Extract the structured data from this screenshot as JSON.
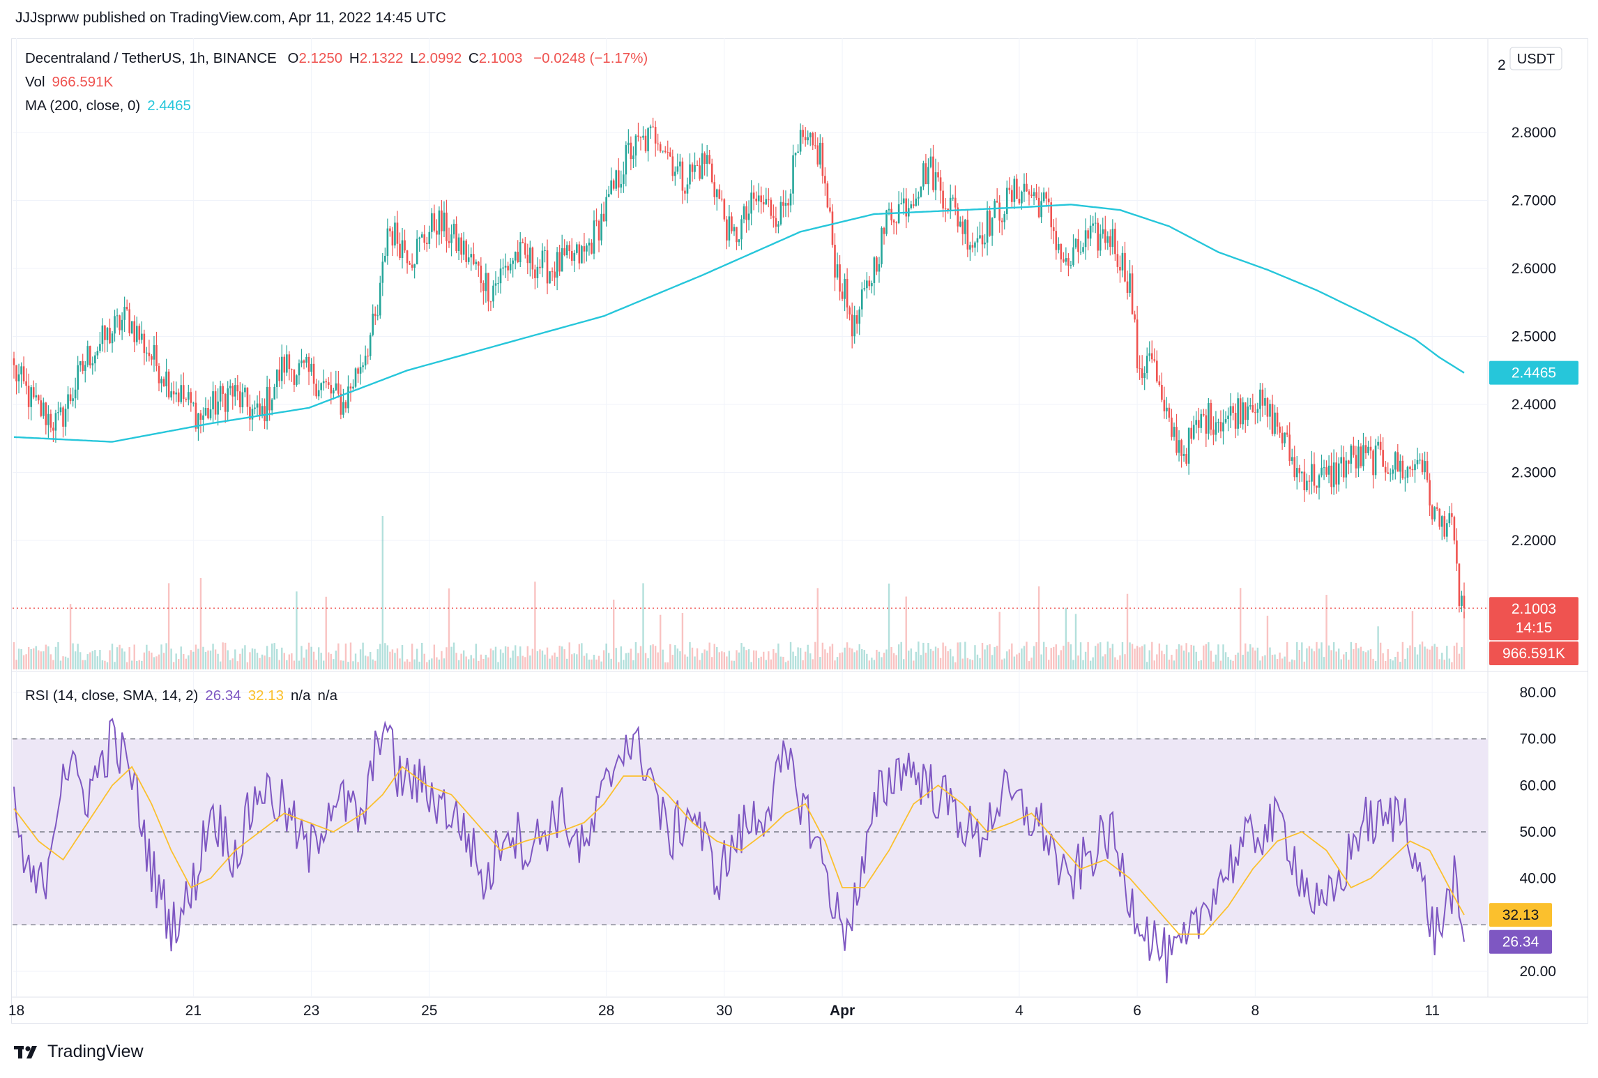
{
  "header": {
    "published_text": "JJJsprww published on TradingView.com, Apr 11, 2022 14:45 UTC"
  },
  "legend": {
    "symbol": "Decentraland / TetherUS, 1h, BINANCE",
    "o_label": "O",
    "o_value": "2.1250",
    "h_label": "H",
    "h_value": "2.1322",
    "l_label": "L",
    "l_value": "2.0992",
    "c_label": "C",
    "c_value": "2.1003",
    "change": "−0.0248 (−1.17%)",
    "vol_label": "Vol",
    "vol_value": "966.591K",
    "ma_label": "MA (200, close, 0)",
    "ma_value": "2.4465",
    "rsi_label": "RSI (14, close, SMA, 14, 2)",
    "rsi_value": "26.34",
    "rsi_sma_value": "32.13",
    "rsi_na1": "n/a",
    "rsi_na2": "n/a"
  },
  "footer": {
    "brand": "TradingView"
  },
  "colors": {
    "up": "#26a69a",
    "down": "#ef5350",
    "ma": "#26c6da",
    "rsi": "#7e57c2",
    "rsi_sma": "#fbc02d",
    "rsi_band": "#ede7f6"
  },
  "chart_data": [
    {
      "type": "candlestick",
      "title": "Decentraland / TetherUS, 1h, BINANCE",
      "currency": "USDT",
      "ylim": [
        2.05,
        2.92
      ],
      "y_ticks": [
        "2.8000",
        "2.7000",
        "2.6000",
        "2.5000",
        "2.4000",
        "2.3000",
        "2.2000"
      ],
      "y_tick_partial": "2",
      "x_ticks": [
        {
          "label": "18",
          "idx": 1
        },
        {
          "label": "21",
          "idx": 73
        },
        {
          "label": "23",
          "idx": 121
        },
        {
          "label": "25",
          "idx": 169
        },
        {
          "label": "28",
          "idx": 241
        },
        {
          "label": "30",
          "idx": 289
        },
        {
          "label": "Apr",
          "idx": 337,
          "bold": true
        },
        {
          "label": "4",
          "idx": 409
        },
        {
          "label": "6",
          "idx": 457
        },
        {
          "label": "8",
          "idx": 505
        },
        {
          "label": "11",
          "idx": 577
        }
      ],
      "bars_count": 591,
      "close_anchors": [
        [
          0,
          2.45
        ],
        [
          8,
          2.4
        ],
        [
          18,
          2.37
        ],
        [
          30,
          2.47
        ],
        [
          46,
          2.53
        ],
        [
          56,
          2.47
        ],
        [
          64,
          2.43
        ],
        [
          76,
          2.38
        ],
        [
          88,
          2.42
        ],
        [
          100,
          2.38
        ],
        [
          110,
          2.46
        ],
        [
          122,
          2.44
        ],
        [
          134,
          2.4
        ],
        [
          142,
          2.47
        ],
        [
          148,
          2.53
        ],
        [
          152,
          2.66
        ],
        [
          162,
          2.62
        ],
        [
          172,
          2.67
        ],
        [
          182,
          2.63
        ],
        [
          194,
          2.57
        ],
        [
          204,
          2.62
        ],
        [
          218,
          2.6
        ],
        [
          232,
          2.62
        ],
        [
          240,
          2.68
        ],
        [
          250,
          2.77
        ],
        [
          262,
          2.8
        ],
        [
          272,
          2.73
        ],
        [
          282,
          2.76
        ],
        [
          292,
          2.64
        ],
        [
          302,
          2.7
        ],
        [
          312,
          2.68
        ],
        [
          320,
          2.78
        ],
        [
          328,
          2.77
        ],
        [
          334,
          2.61
        ],
        [
          342,
          2.51
        ],
        [
          348,
          2.58
        ],
        [
          356,
          2.68
        ],
        [
          364,
          2.7
        ],
        [
          372,
          2.75
        ],
        [
          380,
          2.7
        ],
        [
          390,
          2.64
        ],
        [
          402,
          2.69
        ],
        [
          410,
          2.72
        ],
        [
          420,
          2.69
        ],
        [
          428,
          2.6
        ],
        [
          436,
          2.64
        ],
        [
          446,
          2.65
        ],
        [
          454,
          2.58
        ],
        [
          458,
          2.43
        ],
        [
          462,
          2.49
        ],
        [
          468,
          2.38
        ],
        [
          476,
          2.33
        ],
        [
          484,
          2.38
        ],
        [
          494,
          2.38
        ],
        [
          504,
          2.41
        ],
        [
          514,
          2.37
        ],
        [
          522,
          2.3
        ],
        [
          534,
          2.29
        ],
        [
          544,
          2.32
        ],
        [
          556,
          2.32
        ],
        [
          562,
          2.31
        ],
        [
          568,
          2.3
        ],
        [
          572,
          2.33
        ],
        [
          576,
          2.26
        ],
        [
          580,
          2.22
        ],
        [
          584,
          2.24
        ],
        [
          588,
          2.12
        ],
        [
          590,
          2.1003
        ]
      ],
      "last_price": "2.1003",
      "countdown": "14:15",
      "volume_last": "966.591K",
      "ma_label_value": "2.4465",
      "ma_anchors": [
        [
          0,
          2.352
        ],
        [
          40,
          2.345
        ],
        [
          80,
          2.372
        ],
        [
          120,
          2.395
        ],
        [
          160,
          2.45
        ],
        [
          200,
          2.49
        ],
        [
          240,
          2.53
        ],
        [
          280,
          2.59
        ],
        [
          320,
          2.654
        ],
        [
          350,
          2.68
        ],
        [
          380,
          2.685
        ],
        [
          410,
          2.69
        ],
        [
          430,
          2.694
        ],
        [
          450,
          2.686
        ],
        [
          470,
          2.662
        ],
        [
          490,
          2.624
        ],
        [
          510,
          2.598
        ],
        [
          530,
          2.568
        ],
        [
          550,
          2.533
        ],
        [
          570,
          2.496
        ],
        [
          580,
          2.469
        ],
        [
          590,
          2.4465
        ]
      ]
    },
    {
      "type": "line",
      "title": "RSI (14, close, SMA, 14, 2)",
      "ylim": [
        15,
        84
      ],
      "y_ticks": [
        "80.00",
        "70.00",
        "60.00",
        "50.00",
        "40.00",
        "20.00"
      ],
      "y_tick_hidden": "30.00",
      "bands": {
        "upper": 70,
        "middle": 50,
        "lower": 30
      },
      "rsi_last": "26.34",
      "sma_last": "32.13",
      "series": [
        {
          "name": "RSI",
          "last": 26.34,
          "anchors": [
            [
              0,
              56
            ],
            [
              5,
              40
            ],
            [
              12,
              38
            ],
            [
              20,
              65
            ],
            [
              30,
              58
            ],
            [
              40,
              70
            ],
            [
              48,
              62
            ],
            [
              56,
              42
            ],
            [
              64,
              30
            ],
            [
              72,
              36
            ],
            [
              80,
              55
            ],
            [
              90,
              45
            ],
            [
              100,
              60
            ],
            [
              110,
              55
            ],
            [
              120,
              45
            ],
            [
              130,
              58
            ],
            [
              142,
              52
            ],
            [
              150,
              75
            ],
            [
              156,
              62
            ],
            [
              166,
              60
            ],
            [
              176,
              55
            ],
            [
              184,
              50
            ],
            [
              192,
              38
            ],
            [
              200,
              52
            ],
            [
              210,
              46
            ],
            [
              222,
              55
            ],
            [
              232,
              45
            ],
            [
              240,
              58
            ],
            [
              248,
              70
            ],
            [
              258,
              65
            ],
            [
              266,
              48
            ],
            [
              276,
              55
            ],
            [
              286,
              40
            ],
            [
              296,
              50
            ],
            [
              306,
              55
            ],
            [
              314,
              65
            ],
            [
              322,
              55
            ],
            [
              330,
              42
            ],
            [
              337,
              28
            ],
            [
              344,
              38
            ],
            [
              352,
              58
            ],
            [
              362,
              65
            ],
            [
              372,
              60
            ],
            [
              382,
              55
            ],
            [
              392,
              48
            ],
            [
              402,
              58
            ],
            [
              410,
              55
            ],
            [
              420,
              50
            ],
            [
              428,
              38
            ],
            [
              436,
              44
            ],
            [
              446,
              50
            ],
            [
              454,
              36
            ],
            [
              462,
              28
            ],
            [
              470,
              22
            ],
            [
              478,
              26
            ],
            [
              486,
              36
            ],
            [
              496,
              44
            ],
            [
              506,
              50
            ],
            [
              516,
              52
            ],
            [
              524,
              40
            ],
            [
              532,
              32
            ],
            [
              540,
              40
            ],
            [
              548,
              52
            ],
            [
              558,
              52
            ],
            [
              566,
              55
            ],
            [
              572,
              40
            ],
            [
              578,
              28
            ],
            [
              582,
              32
            ],
            [
              586,
              40
            ],
            [
              588,
              28
            ],
            [
              590,
              26.34
            ]
          ]
        },
        {
          "name": "SMA",
          "last": 32.13,
          "anchors": [
            [
              0,
              55
            ],
            [
              10,
              48
            ],
            [
              20,
              44
            ],
            [
              30,
              52
            ],
            [
              40,
              60
            ],
            [
              48,
              64
            ],
            [
              56,
              56
            ],
            [
              64,
              46
            ],
            [
              72,
              38
            ],
            [
              80,
              40
            ],
            [
              90,
              46
            ],
            [
              100,
              50
            ],
            [
              110,
              54
            ],
            [
              120,
              52
            ],
            [
              130,
              50
            ],
            [
              142,
              54
            ],
            [
              150,
              58
            ],
            [
              158,
              64
            ],
            [
              168,
              60
            ],
            [
              178,
              58
            ],
            [
              188,
              52
            ],
            [
              198,
              46
            ],
            [
              208,
              48
            ],
            [
              222,
              50
            ],
            [
              232,
              52
            ],
            [
              240,
              56
            ],
            [
              248,
              62
            ],
            [
              258,
              62
            ],
            [
              266,
              58
            ],
            [
              276,
              52
            ],
            [
              286,
              48
            ],
            [
              296,
              46
            ],
            [
              306,
              50
            ],
            [
              314,
              54
            ],
            [
              322,
              56
            ],
            [
              330,
              48
            ],
            [
              337,
              38
            ],
            [
              346,
              38
            ],
            [
              356,
              46
            ],
            [
              366,
              56
            ],
            [
              376,
              60
            ],
            [
              386,
              56
            ],
            [
              396,
              50
            ],
            [
              406,
              52
            ],
            [
              414,
              54
            ],
            [
              424,
              48
            ],
            [
              434,
              42
            ],
            [
              444,
              44
            ],
            [
              454,
              40
            ],
            [
              464,
              34
            ],
            [
              474,
              28
            ],
            [
              484,
              28
            ],
            [
              494,
              34
            ],
            [
              504,
              42
            ],
            [
              514,
              48
            ],
            [
              524,
              50
            ],
            [
              534,
              46
            ],
            [
              544,
              38
            ],
            [
              552,
              40
            ],
            [
              560,
              44
            ],
            [
              568,
              48
            ],
            [
              576,
              46
            ],
            [
              582,
              40
            ],
            [
              586,
              36
            ],
            [
              590,
              32.13
            ]
          ]
        }
      ]
    }
  ]
}
